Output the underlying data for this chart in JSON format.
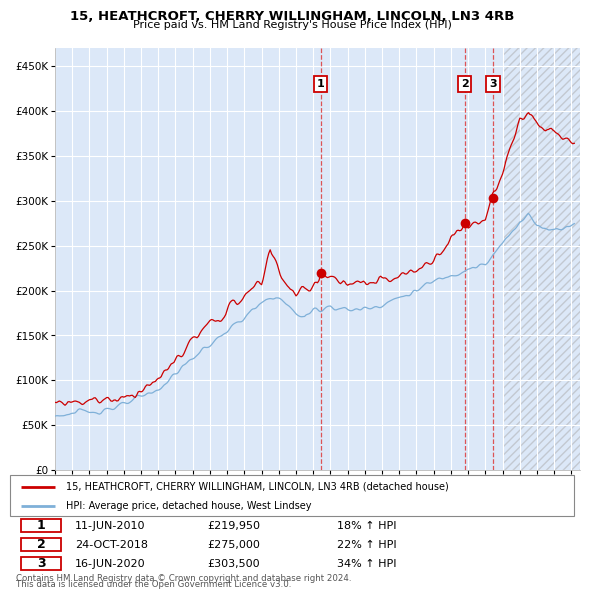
{
  "title": "15, HEATHCROFT, CHERRY WILLINGHAM, LINCOLN, LN3 4RB",
  "subtitle": "Price paid vs. HM Land Registry's House Price Index (HPI)",
  "ylim": [
    0,
    470000
  ],
  "yticks": [
    0,
    50000,
    100000,
    150000,
    200000,
    250000,
    300000,
    350000,
    400000,
    450000
  ],
  "ytick_labels": [
    "£0",
    "£50K",
    "£100K",
    "£150K",
    "£200K",
    "£250K",
    "£300K",
    "£350K",
    "£400K",
    "£450K"
  ],
  "fig_bg_color": "#ffffff",
  "plot_bg_color": "#dce8f8",
  "red_line_color": "#cc0000",
  "blue_line_color": "#7fb0d8",
  "dashed_line_color": "#dd4444",
  "legend_label_red": "15, HEATHCROFT, CHERRY WILLINGHAM, LINCOLN, LN3 4RB (detached house)",
  "legend_label_blue": "HPI: Average price, detached house, West Lindsey",
  "sale1_date": "11-JUN-2010",
  "sale1_price": "£219,950",
  "sale1_hpi": "18% ↑ HPI",
  "sale2_date": "24-OCT-2018",
  "sale2_price": "£275,000",
  "sale2_hpi": "22% ↑ HPI",
  "sale3_date": "16-JUN-2020",
  "sale3_price": "£303,500",
  "sale3_hpi": "34% ↑ HPI",
  "footer1": "Contains HM Land Registry data © Crown copyright and database right 2024.",
  "footer2": "This data is licensed under the Open Government Licence v3.0.",
  "sale1_x": 2010.44,
  "sale1_y": 219950,
  "sale2_x": 2018.81,
  "sale2_y": 275000,
  "sale3_x": 2020.45,
  "sale3_y": 303500,
  "xlim_start": 1995,
  "xlim_end": 2025.5
}
